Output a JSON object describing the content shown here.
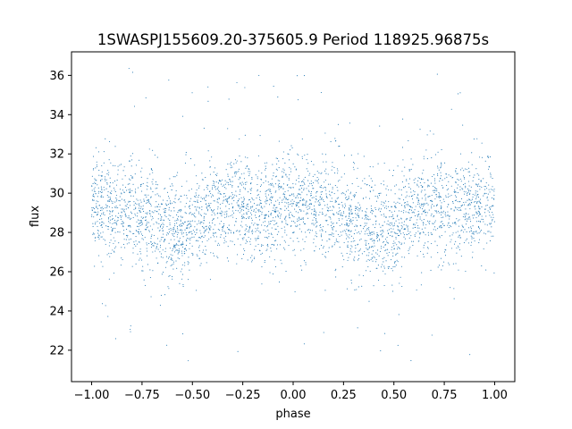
{
  "chart_data": {
    "type": "scatter",
    "title": "1SWASPJ155609.20-375605.9 Period 118925.96875s",
    "xlabel": "phase",
    "ylabel": "flux",
    "xlim": [
      -1.1,
      1.1
    ],
    "ylim": [
      20.4,
      37.2
    ],
    "xticks": [
      -1.0,
      -0.75,
      -0.5,
      -0.25,
      0.0,
      0.25,
      0.5,
      0.75,
      1.0
    ],
    "xtick_labels": [
      "−1.00",
      "−0.75",
      "−0.50",
      "−0.25",
      "0.00",
      "0.25",
      "0.50",
      "0.75",
      "1.00"
    ],
    "yticks": [
      22,
      24,
      26,
      28,
      30,
      32,
      34,
      36
    ],
    "ytick_labels": [
      "22",
      "24",
      "26",
      "28",
      "30",
      "32",
      "34",
      "36"
    ],
    "grid": false,
    "marker_color": "#1f77b4",
    "phase_range": [
      -1.0,
      1.0
    ],
    "series_shape": [
      {
        "phase": -1.0,
        "flux_center": 29.5,
        "flux_spread": 1.6
      },
      {
        "phase": -0.9,
        "flux_center": 29.0,
        "flux_spread": 1.8
      },
      {
        "phase": -0.8,
        "flux_center": 29.2,
        "flux_spread": 1.7
      },
      {
        "phase": -0.7,
        "flux_center": 28.8,
        "flux_spread": 1.9
      },
      {
        "phase": -0.6,
        "flux_center": 28.0,
        "flux_spread": 1.8
      },
      {
        "phase": -0.5,
        "flux_center": 28.3,
        "flux_spread": 1.7
      },
      {
        "phase": -0.4,
        "flux_center": 29.0,
        "flux_spread": 1.6
      },
      {
        "phase": -0.3,
        "flux_center": 29.6,
        "flux_spread": 1.9
      },
      {
        "phase": -0.2,
        "flux_center": 28.9,
        "flux_spread": 1.6
      },
      {
        "phase": -0.1,
        "flux_center": 29.3,
        "flux_spread": 1.7
      },
      {
        "phase": 0.0,
        "flux_center": 29.5,
        "flux_spread": 1.6
      },
      {
        "phase": 0.1,
        "flux_center": 29.0,
        "flux_spread": 1.8
      },
      {
        "phase": 0.2,
        "flux_center": 29.2,
        "flux_spread": 1.7
      },
      {
        "phase": 0.3,
        "flux_center": 28.8,
        "flux_spread": 1.9
      },
      {
        "phase": 0.4,
        "flux_center": 28.0,
        "flux_spread": 1.8
      },
      {
        "phase": 0.5,
        "flux_center": 28.3,
        "flux_spread": 1.7
      },
      {
        "phase": 0.6,
        "flux_center": 29.0,
        "flux_spread": 1.6
      },
      {
        "phase": 0.7,
        "flux_center": 29.6,
        "flux_spread": 1.9
      },
      {
        "phase": 0.8,
        "flux_center": 28.9,
        "flux_spread": 1.6
      },
      {
        "phase": 0.9,
        "flux_center": 29.3,
        "flux_spread": 1.7
      },
      {
        "phase": 1.0,
        "flux_center": 29.5,
        "flux_spread": 1.6
      }
    ]
  }
}
